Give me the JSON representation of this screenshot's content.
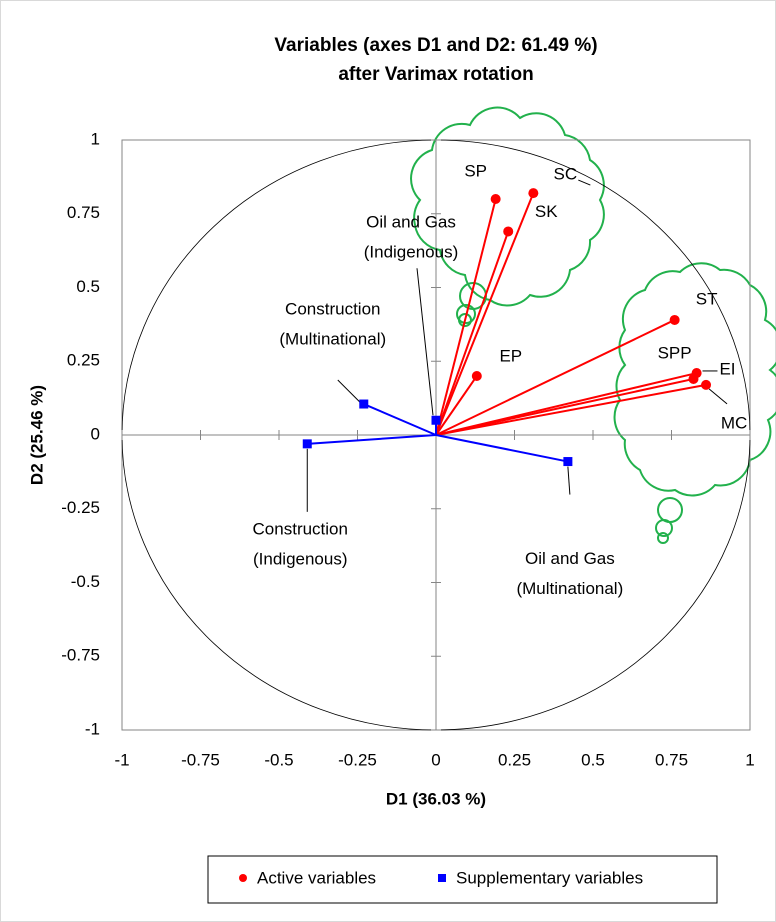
{
  "chart_data": {
    "type": "scatter",
    "title": [
      "Variables (axes D1 and D2: 61.49 %)",
      "after Varimax rotation"
    ],
    "x_label": "D1 (36.03 %)",
    "y_label": "D2 (25.46 %)",
    "xlim": [
      -1,
      1
    ],
    "ylim": [
      -1,
      1
    ],
    "xticks": [
      -1,
      -0.75,
      -0.5,
      -0.25,
      0,
      0.25,
      0.5,
      0.75,
      1
    ],
    "yticks": [
      -1,
      -0.75,
      -0.5,
      -0.25,
      0,
      0.25,
      0.5,
      0.75,
      1
    ],
    "series": [
      {
        "name": "Active variables",
        "color": "#ff0000",
        "marker": "circle",
        "labels": [
          [
            "SP"
          ],
          [
            "SC"
          ],
          [
            "SK"
          ],
          [
            "EP"
          ],
          [
            "ST"
          ],
          [
            "SPP"
          ],
          [
            "EI"
          ],
          [
            "MC"
          ]
        ],
        "x": [
          0.19,
          0.31,
          0.23,
          0.13,
          0.76,
          0.83,
          0.82,
          0.86
        ],
        "values": [
          0.8,
          0.82,
          0.69,
          0.2,
          0.39,
          0.21,
          0.19,
          0.17
        ]
      },
      {
        "name": "Supplementary variables",
        "color": "#0000ff",
        "marker": "square",
        "labels": [
          [
            "Construction",
            "(Multinational)"
          ],
          [
            "Oil and Gas",
            "(Indigenous)"
          ],
          [
            "Construction",
            "(Indigenous)"
          ],
          [
            "Oil and Gas",
            "(Multinational)"
          ]
        ],
        "x": [
          -0.23,
          0.0,
          -0.41,
          0.42
        ],
        "values": [
          0.105,
          0.05,
          -0.03,
          -0.09
        ]
      }
    ]
  }
}
